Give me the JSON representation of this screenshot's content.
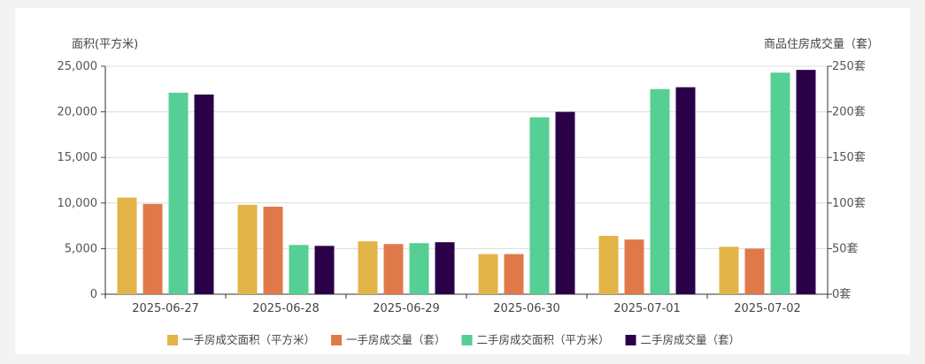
{
  "chart_data": {
    "type": "bar",
    "categories": [
      "2025-06-27",
      "2025-06-28",
      "2025-06-29",
      "2025-06-30",
      "2025-07-01",
      "2025-07-02"
    ],
    "left_axis": {
      "label": "面积(平方米)",
      "ylim": [
        0,
        25000
      ],
      "ticks": [
        "25,000",
        "20,000",
        "15,000",
        "10,000",
        "5,000",
        "0"
      ]
    },
    "right_axis": {
      "label": "商品住房成交量（套）",
      "ylim": [
        0,
        250
      ],
      "ticks": [
        "250套",
        "200套",
        "150套",
        "100套",
        "50套",
        "0套"
      ]
    },
    "series": [
      {
        "name": "一手房成交面积（平方米）",
        "axis": "left",
        "color": "#e3b447",
        "values": [
          10600,
          9800,
          5800,
          4400,
          6400,
          5200
        ]
      },
      {
        "name": "一手房成交量（套）",
        "axis": "right",
        "color": "#e0794a",
        "values": [
          99,
          96,
          55,
          44,
          60,
          50
        ]
      },
      {
        "name": "二手房成交面积（平方米）",
        "axis": "left",
        "color": "#55cf94",
        "values": [
          22100,
          5400,
          5600,
          19400,
          22500,
          24300
        ]
      },
      {
        "name": "二手房成交量（套）",
        "axis": "right",
        "color": "#2a0049",
        "values": [
          219,
          53,
          57,
          200,
          227,
          246
        ]
      }
    ],
    "grid": true,
    "legend_position": "bottom"
  }
}
